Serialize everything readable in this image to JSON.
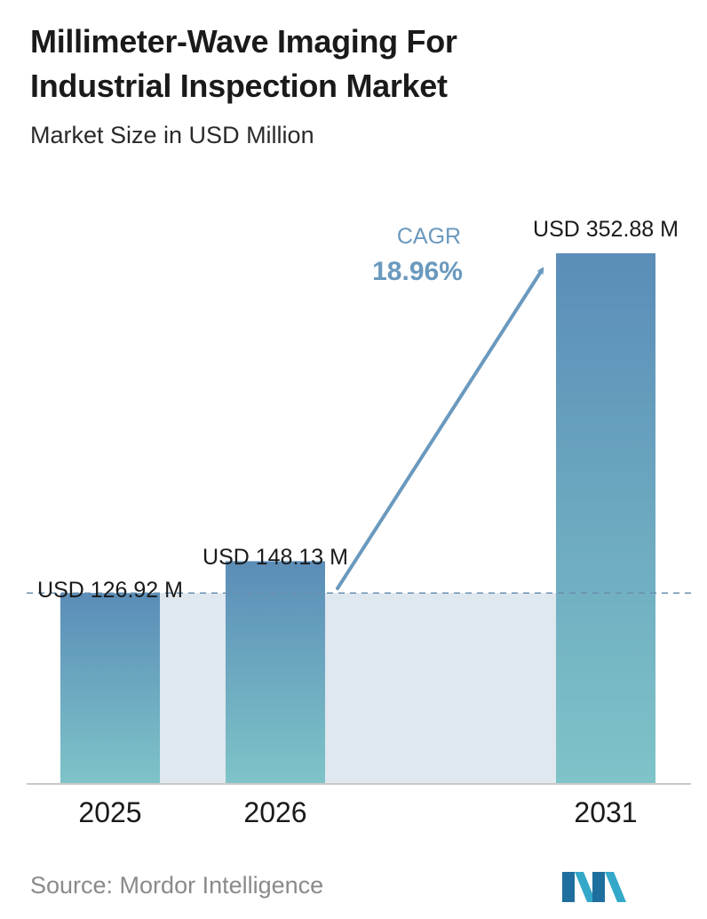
{
  "header": {
    "title_line1": "Millimeter-Wave Imaging For",
    "title_line2": "Industrial Inspection Market",
    "subtitle": "Market Size in USD Million"
  },
  "chart_data": {
    "type": "bar",
    "categories": [
      "2025",
      "2026",
      "2031"
    ],
    "values": [
      126.92,
      148.13,
      352.88
    ],
    "data_labels": [
      "USD 126.92 M",
      "USD 148.13 M",
      "USD 352.88 M"
    ],
    "unit": "USD Million",
    "ylim": [
      0,
      352.88
    ],
    "grid": false,
    "legend": "none",
    "annotation": {
      "label": "CAGR",
      "value": "18.96%"
    },
    "reference_line": {
      "value": 126.92,
      "style": "dashed"
    }
  },
  "colors": {
    "bar_top": "#5b8db8",
    "bar_bottom": "#7ec4c8",
    "band": "#dfe7ef",
    "arrow": "#6a99be",
    "cagr_text": "#6a99be",
    "axis": "#c9c9c9",
    "dashed_line": "#6a8fb0"
  },
  "footer": {
    "source": "Source: Mordor Intelligence",
    "logo_icon": "mordor-intelligence-logo-icon"
  }
}
